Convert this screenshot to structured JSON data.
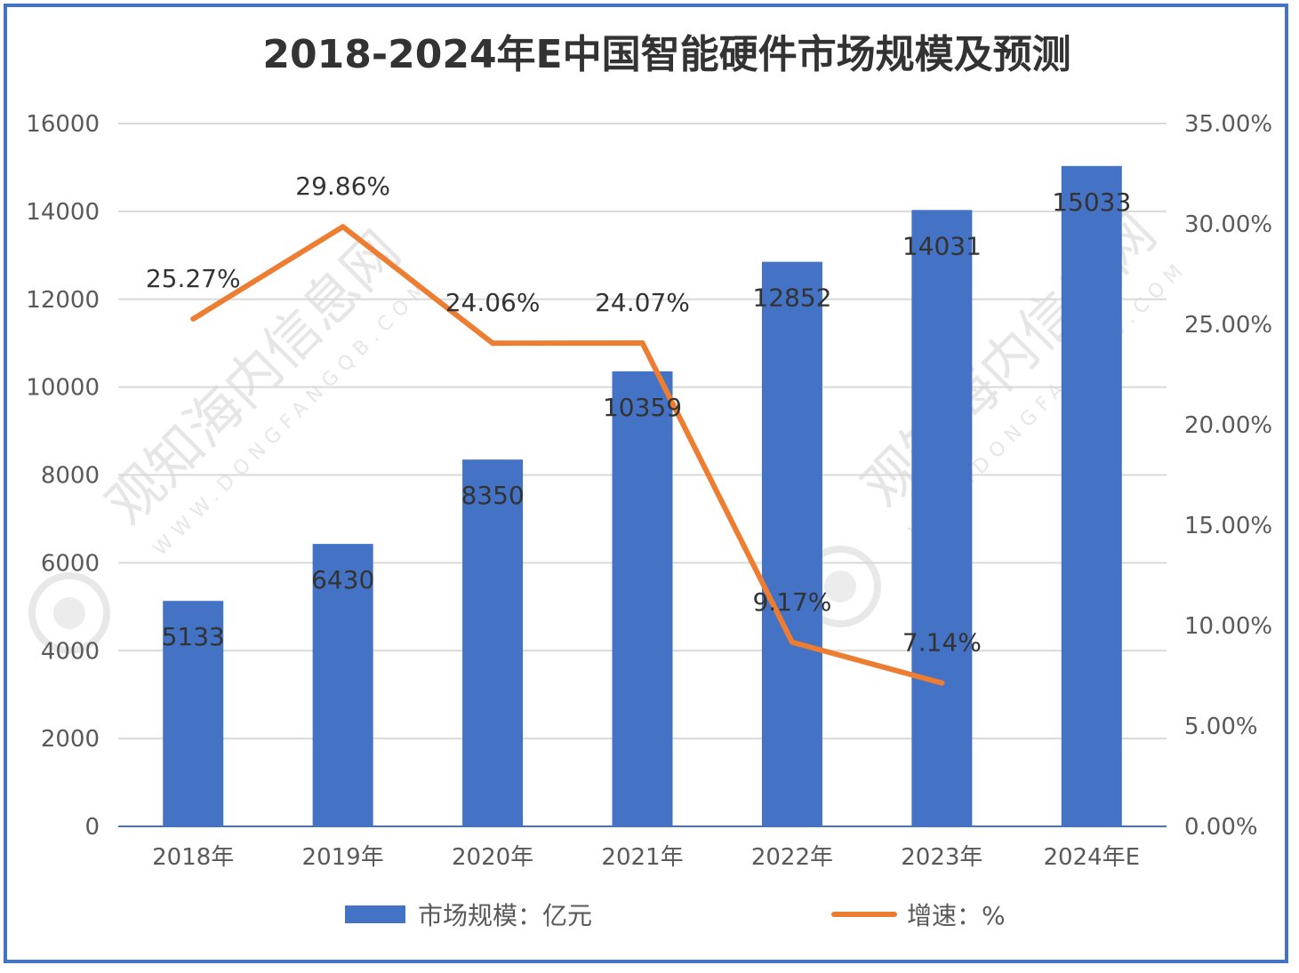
{
  "chart_data": {
    "type": "bar",
    "title": "2018-2024年E中国智能硬件市场规模及预测",
    "categories": [
      "2018年",
      "2019年",
      "2020年",
      "2021年",
      "2022年",
      "2023年",
      "2024年E"
    ],
    "series": [
      {
        "name": "市场规模：亿元",
        "type": "bar",
        "axis": "left",
        "color": "#4472c4",
        "values": [
          5133,
          6430,
          8350,
          10359,
          12852,
          14031,
          15033
        ],
        "labels": [
          "5133",
          "6430",
          "8350",
          "10359",
          "12852",
          "14031",
          "15033"
        ]
      },
      {
        "name": "增速：%",
        "type": "line",
        "axis": "right",
        "color": "#ed7d31",
        "values": [
          25.27,
          29.86,
          24.06,
          24.07,
          9.17,
          7.14,
          null
        ],
        "labels": [
          "25.27%",
          "29.86%",
          "24.06%",
          "24.07%",
          "9.17%",
          "7.14%",
          ""
        ]
      }
    ],
    "y_left": {
      "min": 0,
      "max": 16000,
      "step": 2000,
      "tick_labels": [
        "0",
        "2000",
        "4000",
        "6000",
        "8000",
        "10000",
        "12000",
        "14000",
        "16000"
      ]
    },
    "y_right": {
      "min": 0,
      "max": 35,
      "step": 5,
      "tick_labels": [
        "0.00%",
        "5.00%",
        "10.00%",
        "15.00%",
        "20.00%",
        "25.00%",
        "30.00%",
        "35.00%"
      ]
    },
    "grid": true,
    "legend": "bottom"
  },
  "watermark": {
    "text": "观知海内信息网",
    "sub": "WWW.DONGFANGQB.COM"
  }
}
